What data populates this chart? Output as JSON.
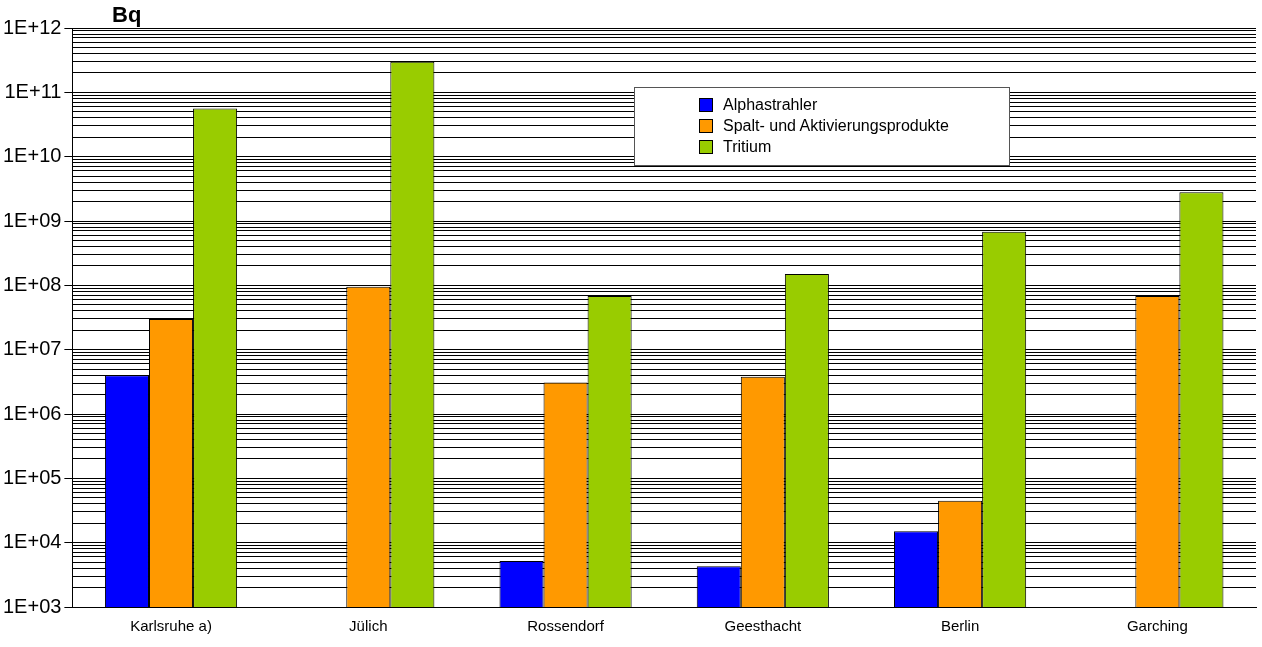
{
  "chart_data": {
    "type": "bar",
    "ylabel": "Bq",
    "categories": [
      "Karlsruhe a)",
      "Jülich",
      "Rossendorf",
      "Geesthacht",
      "Berlin",
      "Garching"
    ],
    "series": [
      {
        "name": "Alphastrahler",
        "color": "#0000ff",
        "values": [
          4000000,
          null,
          5200,
          4300,
          15000,
          null
        ]
      },
      {
        "name": "Spalt- und Aktivierungsprodukte",
        "color": "#ff9900",
        "values": [
          30000000,
          95000000,
          3100000,
          3800000,
          45000,
          68000000
        ]
      },
      {
        "name": "Tritium",
        "color": "#99cc00",
        "values": [
          56000000000,
          300000000000,
          68000000,
          150000000,
          680000000,
          2800000000
        ]
      }
    ],
    "log": "y",
    "ylim": [
      1000,
      1000000000000
    ],
    "yticks": [
      {
        "value": 1000,
        "label": "1E+03"
      },
      {
        "value": 2000,
        "label": null
      },
      {
        "value": 3000,
        "label": null
      },
      {
        "value": 4000,
        "label": null
      },
      {
        "value": 5000,
        "label": null
      },
      {
        "value": 6000,
        "label": null
      },
      {
        "value": 7000,
        "label": null
      },
      {
        "value": 8000,
        "label": null
      },
      {
        "value": 9000,
        "label": null
      },
      {
        "value": 10000,
        "label": "1E+04"
      },
      {
        "value": 20000,
        "label": null
      },
      {
        "value": 30000,
        "label": null
      },
      {
        "value": 40000,
        "label": null
      },
      {
        "value": 50000,
        "label": null
      },
      {
        "value": 60000,
        "label": null
      },
      {
        "value": 70000,
        "label": null
      },
      {
        "value": 80000,
        "label": null
      },
      {
        "value": 90000,
        "label": null
      },
      {
        "value": 100000,
        "label": "1E+05"
      },
      {
        "value": 200000,
        "label": null
      },
      {
        "value": 300000,
        "label": null
      },
      {
        "value": 400000,
        "label": null
      },
      {
        "value": 500000,
        "label": null
      },
      {
        "value": 600000,
        "label": null
      },
      {
        "value": 700000,
        "label": null
      },
      {
        "value": 800000,
        "label": null
      },
      {
        "value": 900000,
        "label": null
      },
      {
        "value": 1000000,
        "label": "1E+06"
      },
      {
        "value": 2000000,
        "label": null
      },
      {
        "value": 3000000,
        "label": null
      },
      {
        "value": 4000000,
        "label": null
      },
      {
        "value": 5000000,
        "label": null
      },
      {
        "value": 6000000,
        "label": null
      },
      {
        "value": 7000000,
        "label": null
      },
      {
        "value": 8000000,
        "label": null
      },
      {
        "value": 9000000,
        "label": null
      },
      {
        "value": 10000000,
        "label": "1E+07"
      },
      {
        "value": 20000000,
        "label": null
      },
      {
        "value": 30000000,
        "label": null
      },
      {
        "value": 40000000,
        "label": null
      },
      {
        "value": 50000000,
        "label": null
      },
      {
        "value": 60000000,
        "label": null
      },
      {
        "value": 70000000,
        "label": null
      },
      {
        "value": 80000000,
        "label": null
      },
      {
        "value": 90000000,
        "label": null
      },
      {
        "value": 100000000,
        "label": "1E+08"
      },
      {
        "value": 200000000,
        "label": null
      },
      {
        "value": 300000000,
        "label": null
      },
      {
        "value": 400000000,
        "label": null
      },
      {
        "value": 500000000,
        "label": null
      },
      {
        "value": 600000000,
        "label": null
      },
      {
        "value": 700000000,
        "label": null
      },
      {
        "value": 800000000,
        "label": null
      },
      {
        "value": 900000000,
        "label": null
      },
      {
        "value": 1000000000,
        "label": "1E+09"
      },
      {
        "value": 2000000000,
        "label": null
      },
      {
        "value": 3000000000,
        "label": null
      },
      {
        "value": 4000000000,
        "label": null
      },
      {
        "value": 5000000000,
        "label": null
      },
      {
        "value": 6000000000,
        "label": null
      },
      {
        "value": 7000000000,
        "label": null
      },
      {
        "value": 8000000000,
        "label": null
      },
      {
        "value": 9000000000,
        "label": null
      },
      {
        "value": 10000000000,
        "label": "1E+10"
      },
      {
        "value": 20000000000,
        "label": null
      },
      {
        "value": 30000000000,
        "label": null
      },
      {
        "value": 40000000000,
        "label": null
      },
      {
        "value": 50000000000,
        "label": null
      },
      {
        "value": 60000000000,
        "label": null
      },
      {
        "value": 70000000000,
        "label": null
      },
      {
        "value": 80000000000,
        "label": null
      },
      {
        "value": 90000000000,
        "label": null
      },
      {
        "value": 100000000000,
        "label": "1E+11"
      },
      {
        "value": 200000000000,
        "label": null
      },
      {
        "value": 300000000000,
        "label": null
      },
      {
        "value": 400000000000,
        "label": null
      },
      {
        "value": 500000000000,
        "label": null
      },
      {
        "value": 600000000000,
        "label": null
      },
      {
        "value": 700000000000,
        "label": null
      },
      {
        "value": 800000000000,
        "label": null
      },
      {
        "value": 900000000000,
        "label": null
      },
      {
        "value": 1000000000000,
        "label": "1E+12"
      }
    ],
    "grid": "y",
    "legend": "top right"
  }
}
